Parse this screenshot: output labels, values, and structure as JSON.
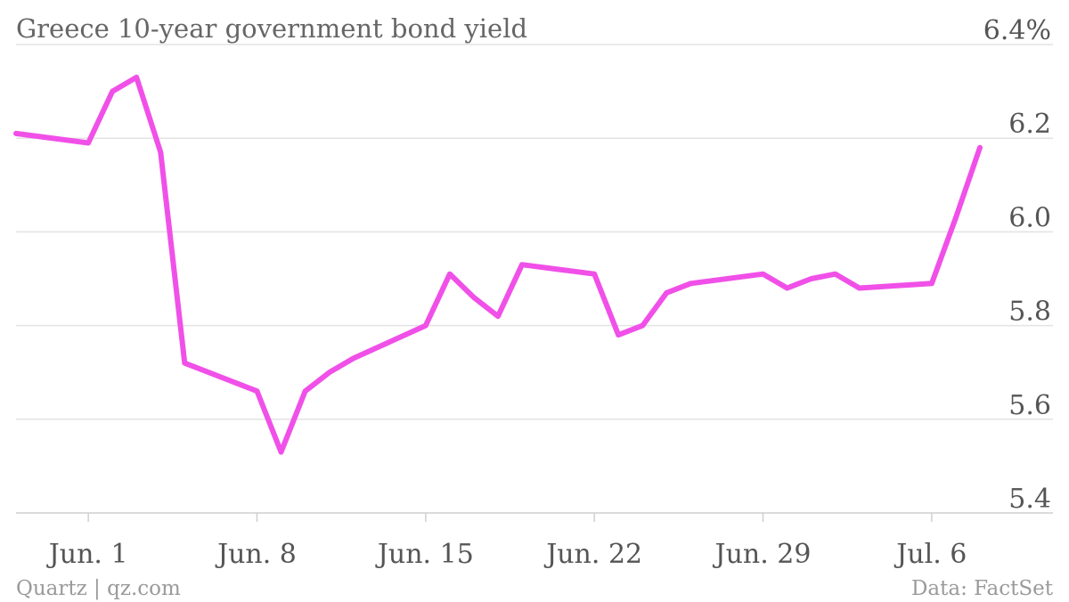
{
  "chart_data": {
    "type": "line",
    "title": "Greece 10-year government bond yield",
    "xlabel": "",
    "ylabel": "",
    "source": "Data: FactSet",
    "credit": "Quartz | qz.com",
    "colors": {
      "line": "#f050e8",
      "grid": "#e3e3e3",
      "text": "#555555"
    },
    "grid": true,
    "ylim": [
      5.4,
      6.4
    ],
    "y_ticks": [
      {
        "value": 6.4,
        "label": "6.4%"
      },
      {
        "value": 6.2,
        "label": "6.2"
      },
      {
        "value": 6.0,
        "label": "6.0"
      },
      {
        "value": 5.8,
        "label": "5.8"
      },
      {
        "value": 5.6,
        "label": "5.6"
      },
      {
        "value": 5.4,
        "label": "5.4"
      }
    ],
    "xlim": [
      "2015-05-29",
      "2015-07-09"
    ],
    "x_ticks": [
      {
        "date": "2015-06-01",
        "label": "Jun. 1"
      },
      {
        "date": "2015-06-08",
        "label": "Jun. 8"
      },
      {
        "date": "2015-06-15",
        "label": "Jun. 15"
      },
      {
        "date": "2015-06-22",
        "label": "Jun. 22"
      },
      {
        "date": "2015-06-29",
        "label": "Jun. 29"
      },
      {
        "date": "2015-07-06",
        "label": "Jul. 6"
      }
    ],
    "series": [
      {
        "x": [
          "2015-05-29",
          "2015-06-01",
          "2015-06-02",
          "2015-06-03",
          "2015-06-04",
          "2015-06-05",
          "2015-06-08",
          "2015-06-09",
          "2015-06-10",
          "2015-06-11",
          "2015-06-12",
          "2015-06-15",
          "2015-06-16",
          "2015-06-17",
          "2015-06-18",
          "2015-06-19",
          "2015-06-22",
          "2015-06-23",
          "2015-06-24",
          "2015-06-25",
          "2015-06-26",
          "2015-06-29",
          "2015-06-30",
          "2015-07-01",
          "2015-07-02",
          "2015-07-03",
          "2015-07-06",
          "2015-07-07",
          "2015-07-08"
        ],
        "values": [
          6.21,
          6.19,
          6.3,
          6.33,
          6.17,
          5.72,
          5.66,
          5.53,
          5.66,
          5.7,
          5.73,
          5.8,
          5.91,
          5.86,
          5.82,
          5.93,
          5.91,
          5.78,
          5.8,
          5.87,
          5.89,
          5.91,
          5.88,
          5.9,
          5.91,
          5.88,
          5.89,
          6.03,
          6.18
        ]
      }
    ]
  }
}
